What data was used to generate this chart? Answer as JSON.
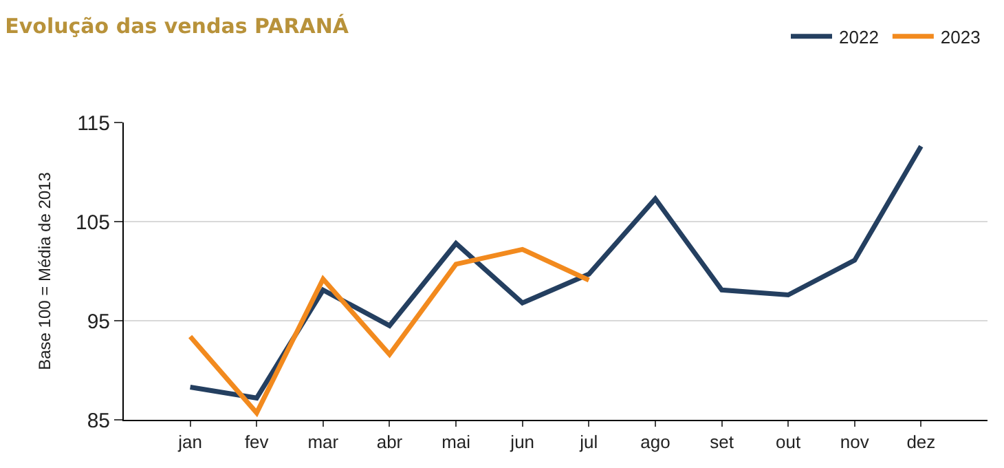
{
  "chart_data": {
    "type": "line",
    "title": "Evolução das vendas PARANÁ",
    "ylabel": "Base 100 = Média de 2013",
    "categories": [
      "jan",
      "fev",
      "mar",
      "abr",
      "mai",
      "jun",
      "jul",
      "ago",
      "set",
      "out",
      "nov",
      "dez"
    ],
    "series": [
      {
        "name": "2022",
        "color": "#243f60",
        "values": [
          88.3,
          87.2,
          98.1,
          94.5,
          102.8,
          96.8,
          99.7,
          107.3,
          98.1,
          97.6,
          101.1,
          112.6
        ]
      },
      {
        "name": "2023",
        "color": "#f28a1e",
        "values": [
          93.4,
          85.7,
          99.2,
          91.6,
          100.7,
          102.2,
          99.1,
          null,
          null,
          null,
          null,
          null
        ]
      }
    ],
    "ylim": [
      85,
      115
    ],
    "yticks": [
      85,
      95,
      105,
      115
    ],
    "grid": "y",
    "legend": "top right",
    "marker": "none",
    "line_style": "solid"
  }
}
